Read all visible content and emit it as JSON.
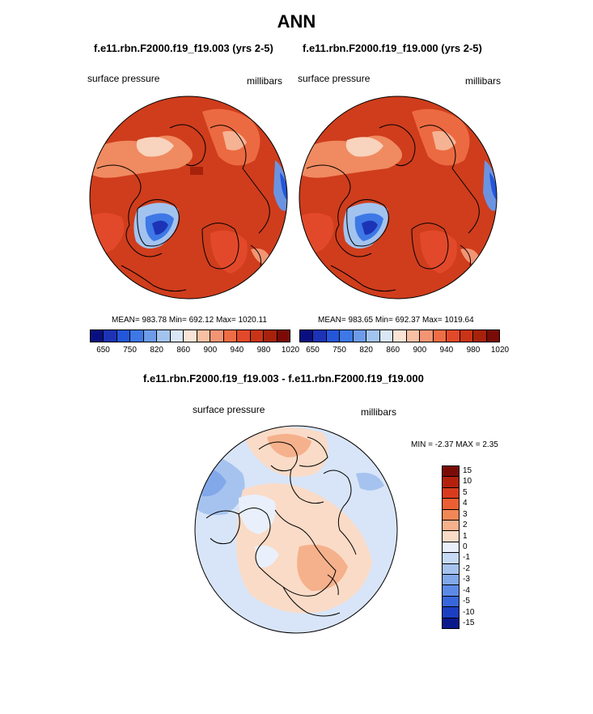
{
  "title": "ANN",
  "panels": [
    {
      "case_title": "f.e11.rbn.F2000.f19_f19.003 (yrs 2-5)",
      "variable": "surface pressure",
      "units": "millibars",
      "stats": "MEAN= 983.78  Min= 692.12  Max= 1020.11"
    },
    {
      "case_title": "f.e11.rbn.F2000.f19_f19.000 (yrs 2-5)",
      "variable": "surface pressure",
      "units": "millibars",
      "stats": "MEAN= 983.65  Min= 692.37  Max= 1019.64"
    }
  ],
  "colorbar_top": {
    "colors": [
      "#0a0f80",
      "#1d33b5",
      "#2456d9",
      "#3d78e6",
      "#6d9be8",
      "#a3c3ef",
      "#d9e6f8",
      "#fbe4d6",
      "#f7c0a3",
      "#f29574",
      "#ef6d45",
      "#e2492a",
      "#c93417",
      "#a6220a",
      "#7b0b06"
    ],
    "tick_labels": [
      "650",
      "750",
      "820",
      "860",
      "900",
      "940",
      "980",
      "1020"
    ]
  },
  "diff": {
    "title": "f.e11.rbn.F2000.f19_f19.003 - f.e11.rbn.F2000.f19_f19.000",
    "variable": "surface pressure",
    "units": "millibars",
    "stats": "MIN =  -2.37 MAX =   2.35",
    "colors": [
      "#7b0b06",
      "#b3210d",
      "#d93b1e",
      "#ec5f34",
      "#f28756",
      "#f5b18c",
      "#fadbc7",
      "#e9f0fb",
      "#c6daf5",
      "#a6c3ef",
      "#82a8ea",
      "#5c8ae6",
      "#3867dc",
      "#1c3fc2",
      "#0a1a8c"
    ],
    "tick_labels": [
      "15",
      "10",
      "5",
      "4",
      "3",
      "2",
      "1",
      "0",
      "-1",
      "-2",
      "-3",
      "-4",
      "-5",
      "-10",
      "-15"
    ]
  }
}
